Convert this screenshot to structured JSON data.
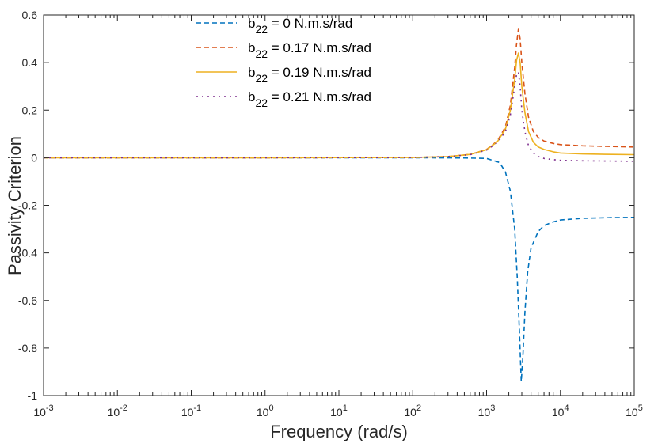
{
  "chart_data": {
    "type": "line",
    "title": "",
    "xlabel": "Frequency (rad/s)",
    "ylabel": "Passivity Criterion",
    "xscale": "log",
    "xlim": [
      0.001,
      100000
    ],
    "ylim": [
      -1,
      0.6
    ],
    "grid": false,
    "legend_position": "top-center",
    "x_ticks": [
      {
        "base": "10",
        "exp": "-3"
      },
      {
        "base": "10",
        "exp": "-2"
      },
      {
        "base": "10",
        "exp": "-1"
      },
      {
        "base": "10",
        "exp": "0"
      },
      {
        "base": "10",
        "exp": "1"
      },
      {
        "base": "10",
        "exp": "2"
      },
      {
        "base": "10",
        "exp": "3"
      },
      {
        "base": "10",
        "exp": "4"
      },
      {
        "base": "10",
        "exp": "5"
      }
    ],
    "y_ticks": [
      "0.6",
      "0.4",
      "0.2",
      "0",
      "-0.2",
      "-0.4",
      "-0.6",
      "-0.8",
      "-1"
    ],
    "series": [
      {
        "name_main": "b",
        "name_sub": "22",
        "name_rest": " = 0 N.m.s/rad",
        "color": "#0072BD",
        "dash": "dashed",
        "x": [
          0.001,
          1,
          100,
          500,
          1000,
          1500,
          1800,
          2100,
          2400,
          2600,
          2800,
          2950,
          3100,
          3300,
          3600,
          4000,
          5000,
          6000,
          8000,
          10000,
          20000,
          50000,
          100000
        ],
        "y": [
          0,
          0,
          0,
          -0.001,
          -0.003,
          -0.02,
          -0.06,
          -0.14,
          -0.3,
          -0.5,
          -0.75,
          -0.94,
          -0.84,
          -0.65,
          -0.48,
          -0.38,
          -0.31,
          -0.285,
          -0.27,
          -0.262,
          -0.255,
          -0.252,
          -0.251
        ]
      },
      {
        "name_main": "b",
        "name_sub": "22",
        "name_rest": " = 0.17 N.m.s/rad",
        "color": "#D95319",
        "dash": "dashed",
        "x": [
          0.001,
          1,
          100,
          300,
          600,
          1000,
          1400,
          1800,
          2100,
          2400,
          2550,
          2700,
          2850,
          3000,
          3300,
          3700,
          4300,
          5000,
          6000,
          8000,
          10000,
          20000,
          50000,
          100000
        ],
        "y": [
          0,
          0,
          0.001,
          0.005,
          0.014,
          0.035,
          0.07,
          0.13,
          0.22,
          0.38,
          0.48,
          0.54,
          0.5,
          0.4,
          0.27,
          0.17,
          0.11,
          0.085,
          0.07,
          0.06,
          0.055,
          0.05,
          0.047,
          0.045
        ]
      },
      {
        "name_main": "b",
        "name_sub": "22",
        "name_rest": " = 0.19 N.m.s/rad",
        "color": "#EDB120",
        "dash": "solid",
        "x": [
          0.001,
          1,
          100,
          300,
          600,
          1000,
          1400,
          1800,
          2100,
          2400,
          2550,
          2700,
          2850,
          3000,
          3300,
          3700,
          4300,
          5000,
          6000,
          8000,
          10000,
          20000,
          50000,
          100000
        ],
        "y": [
          0,
          0,
          0.001,
          0.005,
          0.014,
          0.034,
          0.067,
          0.12,
          0.2,
          0.33,
          0.41,
          0.44,
          0.4,
          0.3,
          0.19,
          0.11,
          0.065,
          0.045,
          0.035,
          0.025,
          0.02,
          0.016,
          0.014,
          0.013
        ]
      },
      {
        "name_main": "b",
        "name_sub": "22",
        "name_rest": " = 0.21 N.m.s/rad",
        "color": "#7E2F8E",
        "dash": "dotted",
        "x": [
          0.001,
          1,
          100,
          300,
          600,
          1000,
          1400,
          1800,
          2100,
          2400,
          2550,
          2700,
          2850,
          3000,
          3300,
          3700,
          4300,
          5000,
          6000,
          8000,
          10000,
          20000,
          50000,
          100000
        ],
        "y": [
          0,
          0,
          0.001,
          0.005,
          0.013,
          0.032,
          0.063,
          0.11,
          0.18,
          0.3,
          0.35,
          0.36,
          0.3,
          0.2,
          0.11,
          0.05,
          0.02,
          0.005,
          -0.003,
          -0.008,
          -0.011,
          -0.013,
          -0.014,
          -0.015
        ]
      }
    ]
  }
}
